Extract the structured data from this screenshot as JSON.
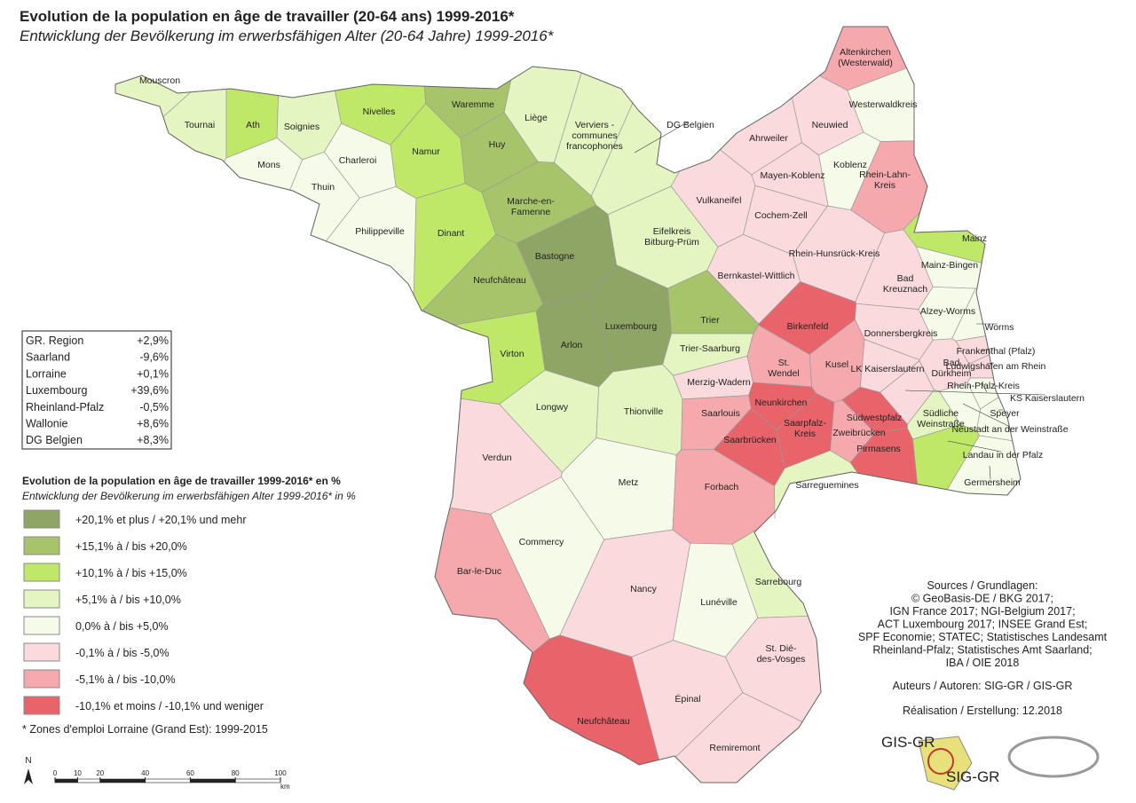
{
  "title": "Evolution de la population en âge de travailler (20-64 ans) 1999-2016*",
  "subtitle": "Entwicklung der Bevölkerung im erwerbsfähigen Alter (20-64 Jahre) 1999-2016*",
  "summary": {
    "rows": [
      [
        "GR. Region",
        "+2,9%"
      ],
      [
        "Saarland",
        "-9,6%"
      ],
      [
        "Lorraine",
        "+0,1%"
      ],
      [
        "Luxembourg",
        "+39,6%"
      ],
      [
        "Rheinland-Pfalz",
        "-0,5%"
      ],
      [
        "Wallonie",
        "+8,6%"
      ],
      [
        "DG Belgien",
        "+8,3%"
      ]
    ]
  },
  "legend": {
    "title": "Evolution de la population en âge de travailler 1999-2016* en %",
    "subtitle": "Entwicklung der Bevölkerung im erwerbsfähigen Alter 1999-2016* in %",
    "classes": [
      {
        "label": "+20,1% et plus / +20,1% und mehr",
        "color": "#8fa566"
      },
      {
        "label": "+15,1% à / bis +20,0%",
        "color": "#a8c46b"
      },
      {
        "label": "+10,1% à / bis +15,0%",
        "color": "#c0e868"
      },
      {
        "label": "+5,1% à / bis +10,0%",
        "color": "#e4f5c2"
      },
      {
        "label": "0,0% à / bis +5,0%",
        "color": "#f6fbe9"
      },
      {
        "label": "-0,1% à / bis -5,0%",
        "color": "#fbdadd"
      },
      {
        "label": "-5,1% à / bis -10,0%",
        "color": "#f5a9ad"
      },
      {
        "label": "-10,1% et moins / -10,1% und weniger",
        "color": "#e8636a"
      }
    ]
  },
  "note": "* Zones d'emploi Lorraine (Grand Est): 1999-2015",
  "sources": [
    "Sources / Grundlagen:",
    "© GeoBasis-DE / BKG 2017;",
    "IGN France 2017; NGI-Belgium 2017;",
    "ACT Luxembourg 2017; INSEE Grand Est;",
    "SPF Economie; STATEC; Statistisches Landesamt",
    "Rheinland-Pfalz; Statistisches Amt Saarland;",
    "IBA / OIE 2018"
  ],
  "authors": "Auteurs / Autoren: SIG-GR / GIS-GR",
  "realisation": "Réalisation / Erstellung: 12.2018",
  "logos": [
    "GIS-GR",
    "SIG-GR"
  ],
  "north": "N",
  "scale": {
    "ticks": [
      0,
      10,
      20,
      40,
      60,
      80,
      100
    ],
    "unit": "km"
  },
  "regions": [
    {
      "label": [
        "Mouscron"
      ],
      "class": 3
    },
    {
      "label": [
        "Tournai"
      ],
      "class": 3
    },
    {
      "label": [
        "Ath"
      ],
      "class": 2
    },
    {
      "label": [
        "Soignies"
      ],
      "class": 3
    },
    {
      "label": [
        "Nivelles"
      ],
      "class": 2
    },
    {
      "label": [
        "Waremme"
      ],
      "class": 1
    },
    {
      "label": [
        "Liège"
      ],
      "class": 3
    },
    {
      "label": [
        "Verviers -",
        "communes",
        "francophones"
      ],
      "class": 3
    },
    {
      "label": [
        "DG Belgien"
      ],
      "class": 3
    },
    {
      "label": [
        "Mons"
      ],
      "class": 4
    },
    {
      "label": [
        "Charleroi"
      ],
      "class": 4
    },
    {
      "label": [
        "Namur"
      ],
      "class": 2
    },
    {
      "label": [
        "Huy"
      ],
      "class": 1
    },
    {
      "label": [
        "Thuin"
      ],
      "class": 4
    },
    {
      "label": [
        "Philippeville"
      ],
      "class": 4
    },
    {
      "label": [
        "Dinant"
      ],
      "class": 2
    },
    {
      "label": [
        "Marche-en-",
        "Famenne"
      ],
      "class": 1
    },
    {
      "label": [
        "Bastogne"
      ],
      "class": 0
    },
    {
      "label": [
        "Neufchâteau"
      ],
      "class": 1
    },
    {
      "label": [
        "Virton"
      ],
      "class": 2
    },
    {
      "label": [
        "Arlon"
      ],
      "class": 0
    },
    {
      "label": [
        "Luxembourg"
      ],
      "class": 0
    },
    {
      "label": [
        "Altenkirchen",
        "(Westerwald)"
      ],
      "class": 6
    },
    {
      "label": [
        "Westerwaldkreis"
      ],
      "class": 4
    },
    {
      "label": [
        "Neuwied"
      ],
      "class": 5
    },
    {
      "label": [
        "Ahrweiler"
      ],
      "class": 5
    },
    {
      "label": [
        "Koblenz"
      ],
      "class": 4
    },
    {
      "label": [
        "Mayen-Koblenz"
      ],
      "class": 5
    },
    {
      "label": [
        "Rhein-Lahn-",
        "Kreis"
      ],
      "class": 6
    },
    {
      "label": [
        "Vulkaneifel"
      ],
      "class": 5
    },
    {
      "label": [
        "Cochem-Zell"
      ],
      "class": 5
    },
    {
      "label": [
        "Eifelkreis",
        "Bitburg-Prüm"
      ],
      "class": 3
    },
    {
      "label": [
        "Mainz"
      ],
      "class": 2
    },
    {
      "label": [
        "Rhein-Hunsrück-Kreis"
      ],
      "class": 5
    },
    {
      "label": [
        "Mainz-Bingen"
      ],
      "class": 4
    },
    {
      "label": [
        "Bernkastel-Wittlich"
      ],
      "class": 5
    },
    {
      "label": [
        "Bad",
        "Kreuznach"
      ],
      "class": 5
    },
    {
      "label": [
        "Trier"
      ],
      "class": 1
    },
    {
      "label": [
        "Birkenfeld"
      ],
      "class": 7
    },
    {
      "label": [
        "Alzey-Worms"
      ],
      "class": 4
    },
    {
      "label": [
        "Worms"
      ],
      "class": 4
    },
    {
      "label": [
        "Trier-Saarburg"
      ],
      "class": 3
    },
    {
      "label": [
        "Donnersbergkreis"
      ],
      "class": 5
    },
    {
      "label": [
        "Frankenthal (Pfalz)"
      ],
      "class": 5
    },
    {
      "label": [
        "Ludwigshafen am Rhein"
      ],
      "class": 5
    },
    {
      "label": [
        "Kusel"
      ],
      "class": 6
    },
    {
      "label": [
        "LK Kaiserslautern"
      ],
      "class": 5
    },
    {
      "label": [
        "Bad",
        "Dürkheim"
      ],
      "class": 5
    },
    {
      "label": [
        "Rhein-Pfalz-Kreis"
      ],
      "class": 4
    },
    {
      "label": [
        "KS Kaiserslautern"
      ],
      "class": 5
    },
    {
      "label": [
        "Speyer"
      ],
      "class": 4
    },
    {
      "label": [
        "Südliche",
        "Weinstraße"
      ],
      "class": 3
    },
    {
      "label": [
        "Neustadt an der Weinstraße"
      ],
      "class": 4
    },
    {
      "label": [
        "Landau in der Pfalz"
      ],
      "class": 2
    },
    {
      "label": [
        "Germersheim"
      ],
      "class": 4
    },
    {
      "label": [
        "Merzig-Wadern"
      ],
      "class": 5
    },
    {
      "label": [
        "St.",
        "Wendel"
      ],
      "class": 6
    },
    {
      "label": [
        "Neunkirchen"
      ],
      "class": 7
    },
    {
      "label": [
        "Saarlouis"
      ],
      "class": 6
    },
    {
      "label": [
        "Saarbrücken"
      ],
      "class": 7
    },
    {
      "label": [
        "Saarpfalz-",
        "Kreis"
      ],
      "class": 7
    },
    {
      "label": [
        "Südwestpfalz"
      ],
      "class": 7
    },
    {
      "label": [
        "Zweibrücken"
      ],
      "class": 6
    },
    {
      "label": [
        "Pirmasens"
      ],
      "class": 7
    },
    {
      "label": [
        "Longwy"
      ],
      "class": 3
    },
    {
      "label": [
        "Thionville"
      ],
      "class": 3
    },
    {
      "label": [
        "Verdun"
      ],
      "class": 5
    },
    {
      "label": [
        "Metz"
      ],
      "class": 4
    },
    {
      "label": [
        "Forbach"
      ],
      "class": 6
    },
    {
      "label": [
        "Sarreguemines"
      ],
      "class": 3
    },
    {
      "label": [
        "Commercy"
      ],
      "class": 4
    },
    {
      "label": [
        "Bar-le-Duc"
      ],
      "class": 6
    },
    {
      "label": [
        "Nancy"
      ],
      "class": 5
    },
    {
      "label": [
        "Sarrebourg"
      ],
      "class": 3
    },
    {
      "label": [
        "Lunéville"
      ],
      "class": 4
    },
    {
      "label": [
        "St. Dié-",
        "des-Vosges"
      ],
      "class": 5
    },
    {
      "label": [
        "Épinal"
      ],
      "class": 5
    },
    {
      "label": [
        "Neufchâteau"
      ],
      "class": 7
    },
    {
      "label": [
        "Remiremont"
      ],
      "class": 5
    }
  ]
}
